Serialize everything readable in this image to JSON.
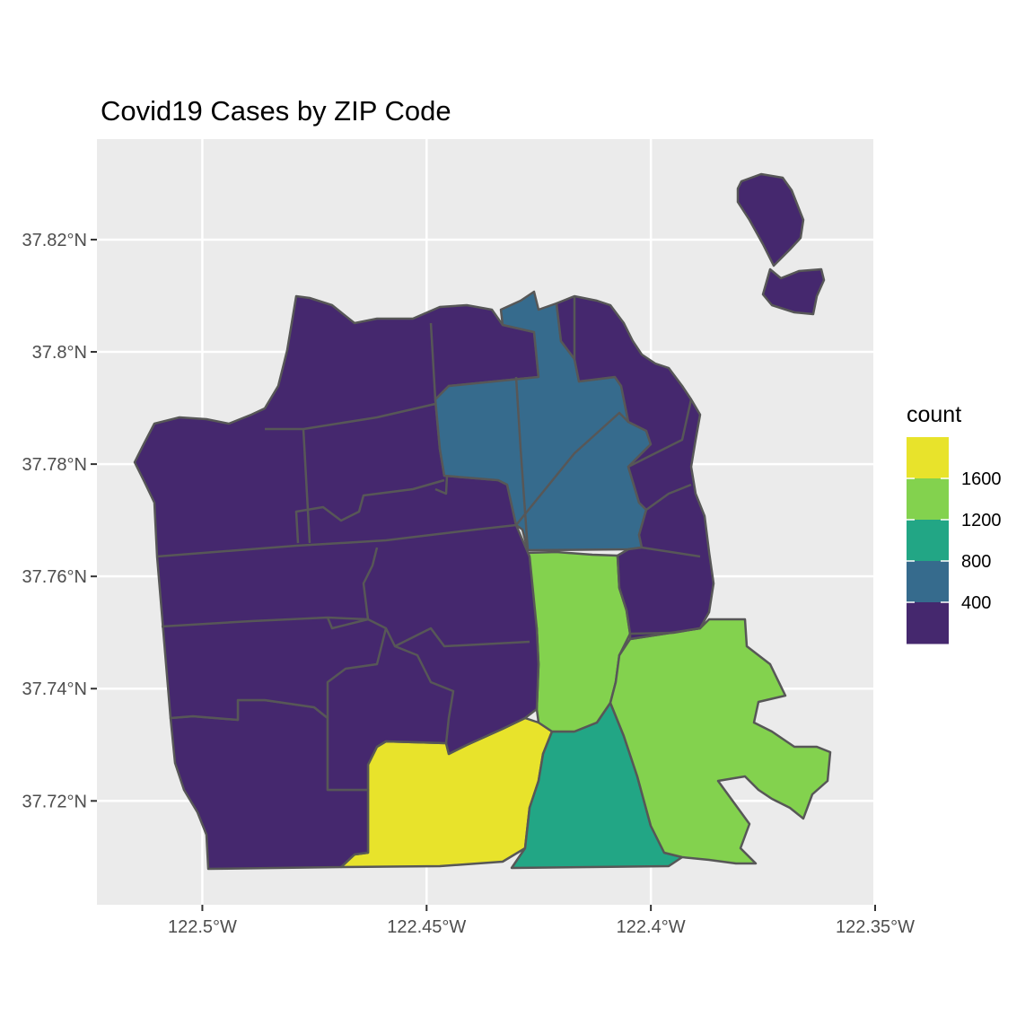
{
  "chart_data": {
    "type": "choropleth",
    "title": "Covid19 Cases by ZIP Code",
    "x_ticks": [
      {
        "value": -122.5,
        "label": "122.5°W"
      },
      {
        "value": -122.45,
        "label": "122.45°W"
      },
      {
        "value": -122.4,
        "label": "122.4°W"
      },
      {
        "value": -122.35,
        "label": "122.35°W"
      }
    ],
    "y_ticks": [
      {
        "value": 37.72,
        "label": "37.72°N"
      },
      {
        "value": 37.74,
        "label": "37.74°N"
      },
      {
        "value": 37.76,
        "label": "37.76°N"
      },
      {
        "value": 37.78,
        "label": "37.78°N"
      },
      {
        "value": 37.8,
        "label": "37.8°N"
      },
      {
        "value": 37.82,
        "label": "37.82°N"
      }
    ],
    "xlim": [
      -122.5235,
      -122.3504
    ],
    "ylim": [
      37.7015,
      37.8379
    ],
    "legend": {
      "title": "count",
      "placement": "right",
      "labels": [
        "1600",
        "1200",
        "800",
        "400"
      ],
      "colors": [
        "#e8e32b",
        "#83d24e",
        "#22a685",
        "#366b8d",
        "#45286e"
      ]
    },
    "colors": {
      "panel": "#ebebeb",
      "grid": "#ffffff",
      "border": "#575757",
      "low": "#45286e",
      "mid_low": "#366b8d",
      "mid": "#22a685",
      "mid_high": "#83d24e",
      "high": "#e8e32b"
    }
  }
}
